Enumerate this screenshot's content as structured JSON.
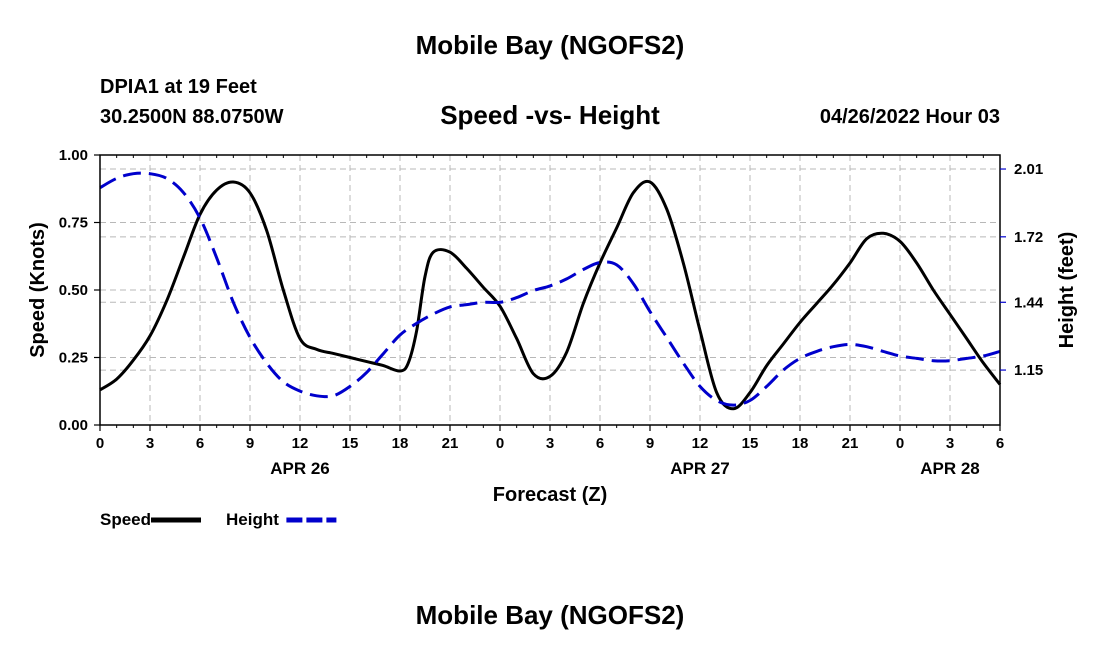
{
  "header": {
    "title": "Mobile Bay (NGOFS2)",
    "station": "DPIA1 at 19 Feet",
    "coords": "30.2500N  88.0750W",
    "subtitle": "Speed -vs- Height",
    "datetime": "04/26/2022 Hour 03",
    "footer_title": "Mobile Bay (NGOFS2)"
  },
  "chart_data": {
    "type": "line",
    "xlabel": "Forecast (Z)",
    "ylabel": "Speed (Knots)",
    "y2label": "Height (feet)",
    "xlim": [
      0,
      54
    ],
    "ylim": [
      0,
      1
    ],
    "y2lim": [
      0.915,
      2.07
    ],
    "grid": true,
    "x_tick_values": [
      0,
      3,
      6,
      9,
      12,
      15,
      18,
      21,
      24,
      27,
      30,
      33,
      36,
      39,
      42,
      45,
      48,
      51,
      54
    ],
    "x_tick_labels": [
      "0",
      "3",
      "6",
      "9",
      "12",
      "15",
      "18",
      "21",
      "0",
      "3",
      "6",
      "9",
      "12",
      "15",
      "18",
      "21",
      "0",
      "3",
      "6"
    ],
    "date_labels": [
      {
        "x": 12,
        "label": "APR 26"
      },
      {
        "x": 36,
        "label": "APR 27"
      },
      {
        "x": 51,
        "label": "APR 28"
      }
    ],
    "y_ticks": [
      0,
      0.25,
      0.5,
      0.75,
      1.0
    ],
    "y_tick_labels": [
      "0.00",
      "0.25",
      "0.50",
      "0.75",
      "1.00"
    ],
    "y2_ticks": [
      1.15,
      1.44,
      1.72,
      2.01
    ],
    "y2_tick_labels": [
      "1.15",
      "1.44",
      "1.72",
      "2.01"
    ],
    "legend_position": "bottom-left",
    "series": [
      {
        "name": "Speed",
        "axis": "left",
        "color": "#000000",
        "style": "solid",
        "x": [
          0,
          1,
          2,
          3,
          4,
          5,
          6,
          7,
          8,
          9,
          10,
          11,
          12,
          13,
          14,
          15,
          16,
          17,
          18,
          18.5,
          19,
          19.5,
          20,
          21,
          22,
          23,
          24,
          25,
          26,
          27,
          28,
          29,
          30,
          31,
          32,
          33,
          34,
          35,
          36,
          37,
          38,
          39,
          40,
          41,
          42,
          43,
          44,
          45,
          46,
          47,
          48,
          49,
          50,
          51,
          52,
          53,
          54
        ],
        "values": [
          0.13,
          0.17,
          0.24,
          0.33,
          0.46,
          0.62,
          0.78,
          0.87,
          0.9,
          0.86,
          0.72,
          0.5,
          0.32,
          0.28,
          0.265,
          0.25,
          0.235,
          0.22,
          0.2,
          0.23,
          0.35,
          0.55,
          0.64,
          0.64,
          0.58,
          0.51,
          0.44,
          0.32,
          0.19,
          0.18,
          0.27,
          0.45,
          0.6,
          0.73,
          0.86,
          0.9,
          0.8,
          0.6,
          0.35,
          0.12,
          0.06,
          0.12,
          0.22,
          0.3,
          0.38,
          0.45,
          0.52,
          0.6,
          0.69,
          0.71,
          0.68,
          0.6,
          0.5,
          0.41,
          0.32,
          0.23,
          0.15
        ]
      },
      {
        "name": "Height",
        "axis": "right",
        "color": "#0000cc",
        "style": "dashed",
        "x": [
          0,
          1,
          2,
          3,
          4,
          5,
          6,
          7,
          8,
          9,
          10,
          11,
          12,
          13,
          14,
          15,
          16,
          17,
          18,
          19,
          20,
          21,
          22,
          23,
          24,
          25,
          26,
          27,
          28,
          29,
          30,
          31,
          32,
          33,
          34,
          35,
          36,
          37,
          38,
          39,
          40,
          41,
          42,
          43,
          44,
          45,
          46,
          47,
          48,
          49,
          50,
          51,
          52,
          53,
          54
        ],
        "values": [
          1.93,
          1.97,
          1.99,
          1.99,
          1.97,
          1.91,
          1.8,
          1.63,
          1.44,
          1.29,
          1.18,
          1.1,
          1.06,
          1.04,
          1.04,
          1.08,
          1.14,
          1.22,
          1.3,
          1.35,
          1.39,
          1.42,
          1.43,
          1.44,
          1.44,
          1.46,
          1.49,
          1.51,
          1.54,
          1.58,
          1.61,
          1.6,
          1.52,
          1.4,
          1.29,
          1.18,
          1.08,
          1.02,
          1.0,
          1.02,
          1.08,
          1.15,
          1.2,
          1.23,
          1.25,
          1.26,
          1.25,
          1.23,
          1.21,
          1.2,
          1.19,
          1.19,
          1.2,
          1.21,
          1.23
        ]
      }
    ]
  }
}
